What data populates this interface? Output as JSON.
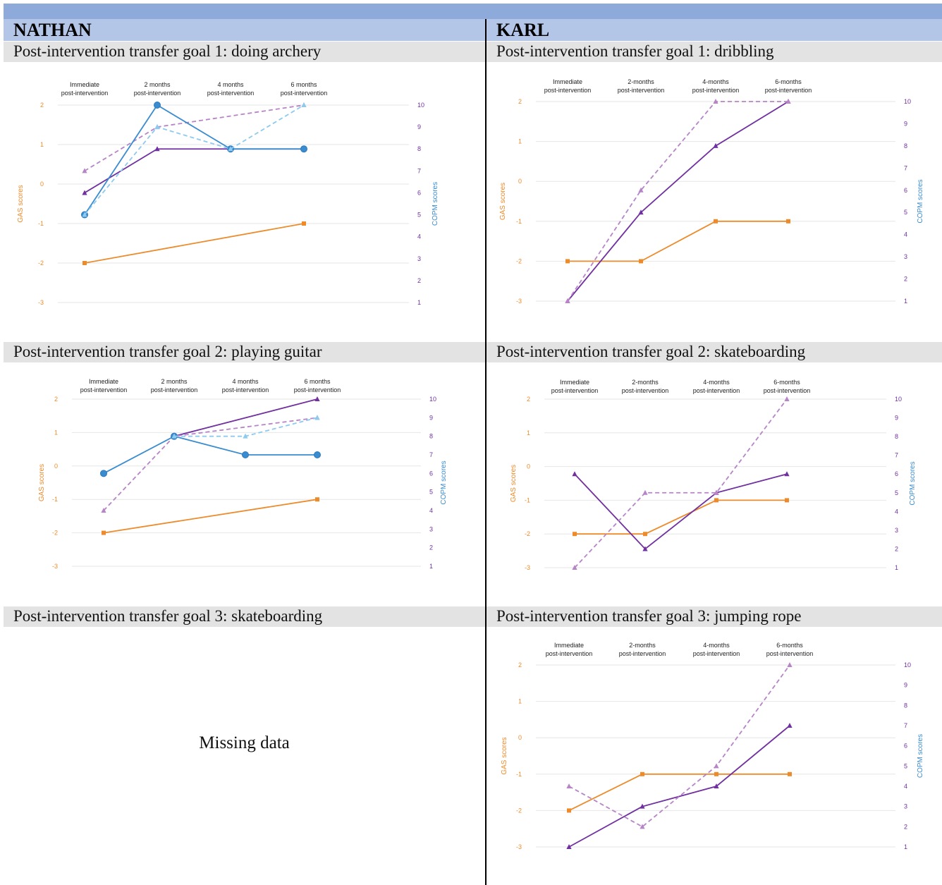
{
  "people": [
    {
      "name": "NATHAN",
      "left": true
    },
    {
      "name": "KARL",
      "left": false
    }
  ],
  "goals": {
    "nathan_1": "Post-intervention transfer goal 1: doing archery",
    "nathan_2": "Post-intervention transfer goal 2: playing guitar",
    "nathan_3": "Post-intervention transfer goal 3: skateboarding",
    "karl_1": "Post-intervention transfer goal 1: dribbling",
    "karl_2": "Post-intervention transfer goal 2: skateboarding",
    "karl_3": "Post-intervention transfer goal 3: jumping rope"
  },
  "missing_text": "Missing data",
  "colors": {
    "gas": "#ed8b2b",
    "copm_dark": "#7030a0",
    "copm_light": "#b784c8",
    "blue_dark": "#3a8cd0",
    "blue_light": "#8ccaf0"
  },
  "chart_data": [
    {
      "id": "nathan_1",
      "type": "line",
      "categories": [
        "Immediate post-intervention",
        "2 months post-intervention",
        "4 months post-intervention",
        "6 months post-intervention"
      ],
      "ylabel": "GAS scores",
      "y2label": "COPM scores",
      "ylim": [
        -3,
        2
      ],
      "y2lim": [
        1,
        10
      ],
      "series": [
        {
          "axis": "left",
          "color": "#ed8b2b",
          "dash": false,
          "marker": "square",
          "points": [
            [
              0,
              -2
            ],
            [
              3,
              -1
            ]
          ]
        },
        {
          "axis": "right",
          "color": "#7030a0",
          "dash": false,
          "marker": "triangle",
          "points": [
            [
              0,
              6
            ],
            [
              1,
              8
            ],
            [
              2,
              8
            ],
            [
              3,
              8
            ]
          ]
        },
        {
          "axis": "right",
          "color": "#b784c8",
          "dash": true,
          "marker": "triangle",
          "points": [
            [
              0,
              7
            ],
            [
              1,
              9
            ],
            [
              3,
              10
            ]
          ]
        },
        {
          "axis": "right",
          "color": "#3a8cd0",
          "dash": false,
          "marker": "circle",
          "points": [
            [
              0,
              5
            ],
            [
              1,
              10
            ],
            [
              2,
              8
            ],
            [
              3,
              8
            ]
          ]
        },
        {
          "axis": "right",
          "color": "#8ccaf0",
          "dash": true,
          "marker": "triangle",
          "points": [
            [
              0,
              5
            ],
            [
              1,
              9
            ],
            [
              2,
              8
            ],
            [
              3,
              10
            ]
          ]
        }
      ]
    },
    {
      "id": "nathan_2",
      "type": "line",
      "categories": [
        "Immediate post-intervention",
        "2 months post-intervention",
        "4 months post-intervention",
        "6 months post-intervention"
      ],
      "ylabel": "GAS scores",
      "y2label": "COPM scores",
      "ylim": [
        -3,
        2
      ],
      "y2lim": [
        1,
        10
      ],
      "series": [
        {
          "axis": "left",
          "color": "#ed8b2b",
          "dash": false,
          "marker": "square",
          "points": [
            [
              0,
              -2
            ],
            [
              3,
              -1
            ]
          ]
        },
        {
          "axis": "right",
          "color": "#7030a0",
          "dash": false,
          "marker": "triangle",
          "points": [
            [
              1,
              8
            ],
            [
              3,
              10
            ]
          ]
        },
        {
          "axis": "right",
          "color": "#b784c8",
          "dash": true,
          "marker": "triangle",
          "points": [
            [
              0,
              4
            ],
            [
              1,
              8
            ],
            [
              3,
              9
            ]
          ]
        },
        {
          "axis": "right",
          "color": "#3a8cd0",
          "dash": false,
          "marker": "circle",
          "points": [
            [
              0,
              6
            ],
            [
              1,
              8
            ],
            [
              2,
              7
            ],
            [
              3,
              7
            ]
          ]
        },
        {
          "axis": "right",
          "color": "#8ccaf0",
          "dash": true,
          "marker": "triangle",
          "points": [
            [
              1,
              8
            ],
            [
              2,
              8
            ],
            [
              3,
              9
            ]
          ]
        }
      ]
    },
    {
      "id": "karl_1",
      "type": "line",
      "categories": [
        "Immediate post-intervention",
        "2-months post-intervention",
        "4-months post-intervention",
        "6-months post-intervention"
      ],
      "ylabel": "GAS scores",
      "y2label": "COPM scores",
      "ylim": [
        -3,
        2
      ],
      "y2lim": [
        1,
        10
      ],
      "series": [
        {
          "axis": "left",
          "color": "#ed8b2b",
          "dash": false,
          "marker": "square",
          "points": [
            [
              0,
              -2
            ],
            [
              1,
              -2
            ],
            [
              2,
              -1
            ],
            [
              3,
              -1
            ]
          ]
        },
        {
          "axis": "right",
          "color": "#7030a0",
          "dash": false,
          "marker": "triangle",
          "points": [
            [
              0,
              1
            ],
            [
              1,
              5
            ],
            [
              2,
              8
            ],
            [
              3,
              10
            ]
          ]
        },
        {
          "axis": "right",
          "color": "#b784c8",
          "dash": true,
          "marker": "triangle",
          "points": [
            [
              0,
              1
            ],
            [
              1,
              6
            ],
            [
              2,
              10
            ],
            [
              3,
              10
            ]
          ]
        }
      ]
    },
    {
      "id": "karl_2",
      "type": "line",
      "categories": [
        "Immediate post-intervention",
        "2-months post-intervention",
        "4-months post-intervention",
        "6-months post-intervention"
      ],
      "ylabel": "GAS scores",
      "y2label": "COPM scores",
      "ylim": [
        -3,
        2
      ],
      "y2lim": [
        1,
        10
      ],
      "series": [
        {
          "axis": "left",
          "color": "#ed8b2b",
          "dash": false,
          "marker": "square",
          "points": [
            [
              0,
              -2
            ],
            [
              1,
              -2
            ],
            [
              2,
              -1
            ],
            [
              3,
              -1
            ]
          ]
        },
        {
          "axis": "right",
          "color": "#7030a0",
          "dash": false,
          "marker": "triangle",
          "points": [
            [
              0,
              6
            ],
            [
              1,
              2
            ],
            [
              2,
              5
            ],
            [
              3,
              6
            ]
          ]
        },
        {
          "axis": "right",
          "color": "#b784c8",
          "dash": true,
          "marker": "triangle",
          "points": [
            [
              0,
              1
            ],
            [
              1,
              5
            ],
            [
              2,
              5
            ],
            [
              3,
              10
            ]
          ]
        }
      ]
    },
    {
      "id": "karl_3",
      "type": "line",
      "categories": [
        "Immediate post-intervention",
        "2-months post-intervention",
        "4-months post-intervention",
        "6-months post-intervention"
      ],
      "ylabel": "GAS scores",
      "y2label": "COPM scores",
      "ylim": [
        -3,
        2
      ],
      "y2lim": [
        1,
        10
      ],
      "series": [
        {
          "axis": "left",
          "color": "#ed8b2b",
          "dash": false,
          "marker": "square",
          "points": [
            [
              0,
              -2
            ],
            [
              1,
              -1
            ],
            [
              2,
              -1
            ],
            [
              3,
              -1
            ]
          ]
        },
        {
          "axis": "right",
          "color": "#7030a0",
          "dash": false,
          "marker": "triangle",
          "points": [
            [
              0,
              1
            ],
            [
              1,
              3
            ],
            [
              2,
              4
            ],
            [
              3,
              7
            ]
          ]
        },
        {
          "axis": "right",
          "color": "#b784c8",
          "dash": true,
          "marker": "triangle",
          "points": [
            [
              0,
              4
            ],
            [
              1,
              2
            ],
            [
              2,
              5
            ],
            [
              3,
              10
            ]
          ]
        }
      ]
    }
  ]
}
